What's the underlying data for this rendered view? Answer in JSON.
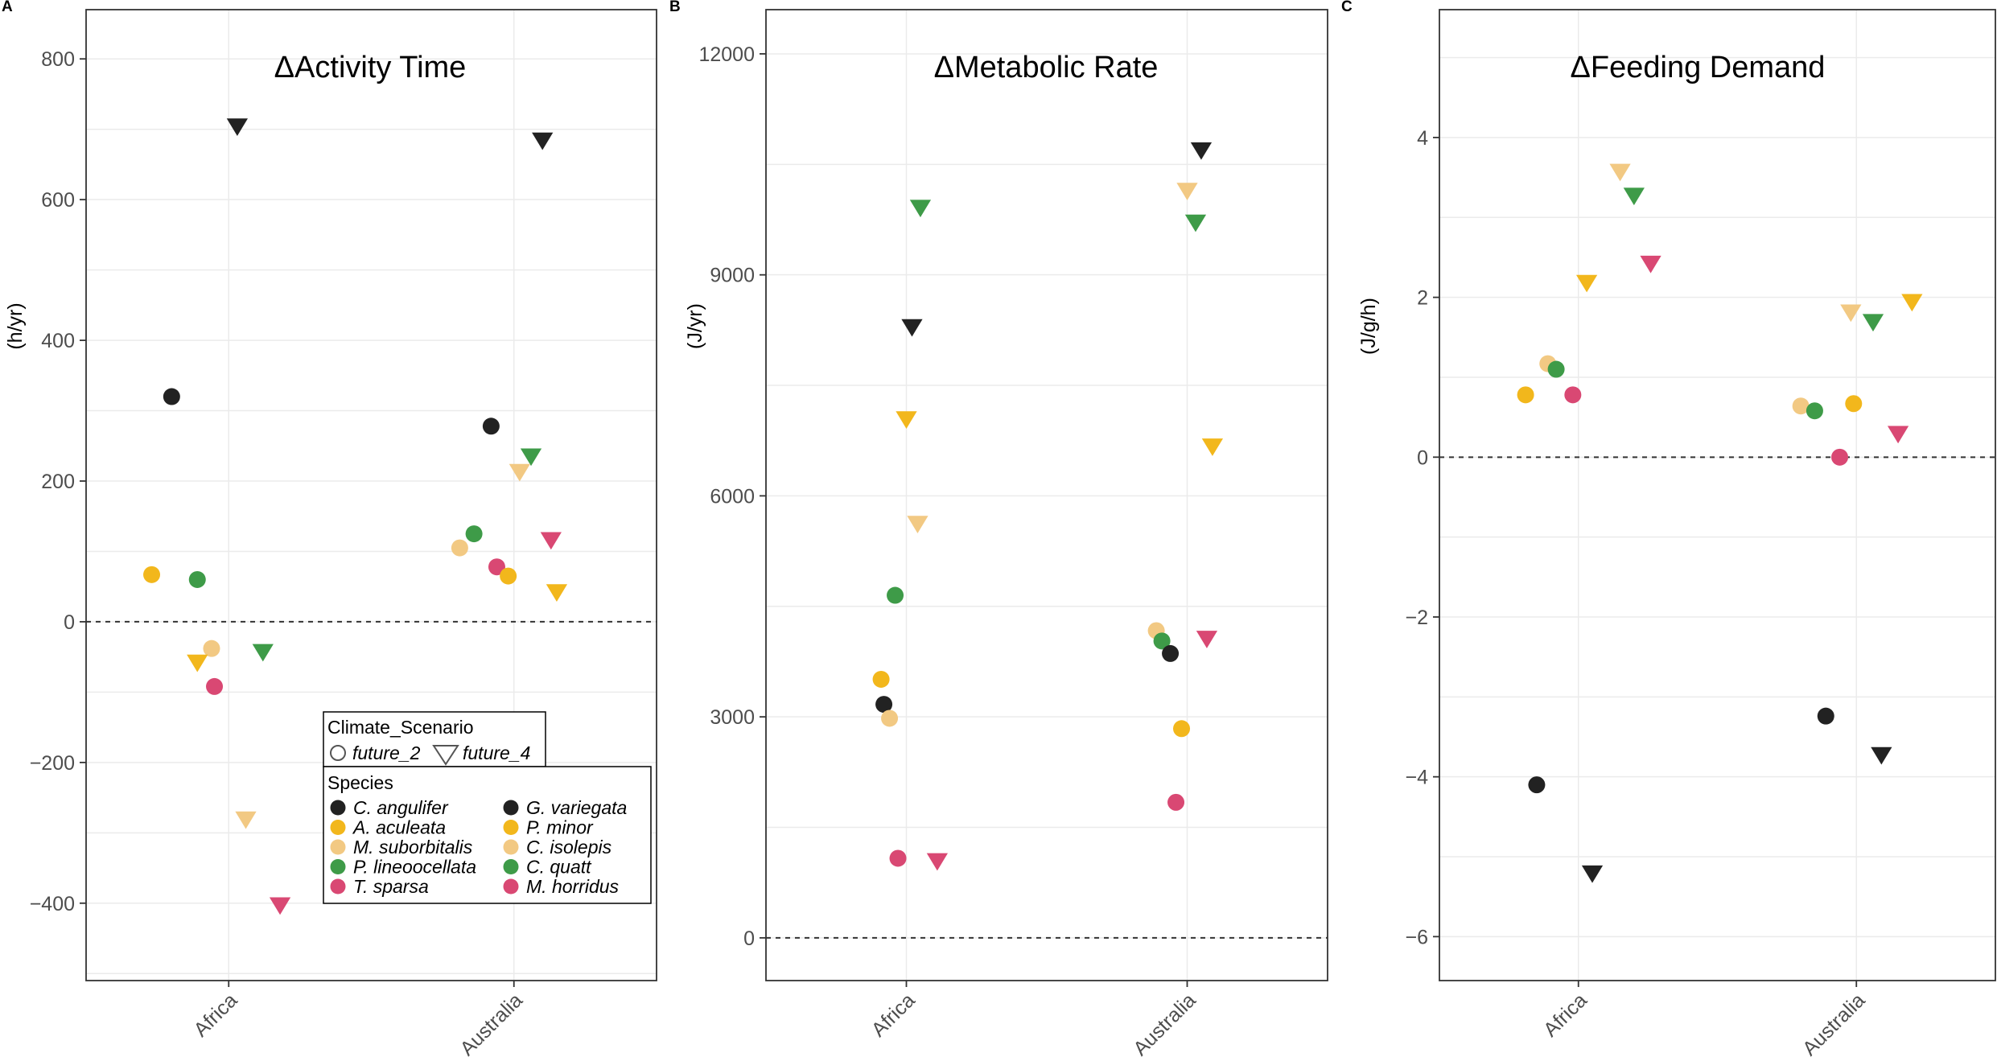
{
  "chart_data": [
    {
      "panel": "A",
      "type": "scatter",
      "title": "ΔActivity Time",
      "ylabel": "(h/yr)",
      "categories": [
        "Africa",
        "Australia"
      ],
      "ylim": [
        -510,
        870
      ],
      "yticks": [
        -400,
        -200,
        0,
        200,
        400,
        600,
        800
      ],
      "zero_line": true,
      "points": [
        {
          "x": "Africa",
          "offset": -0.2,
          "y": 320,
          "shape": "circle",
          "color": "#222222"
        },
        {
          "x": "Africa",
          "offset": 0.03,
          "y": 705,
          "shape": "triangle",
          "color": "#222222"
        },
        {
          "x": "Africa",
          "offset": -0.27,
          "y": 67,
          "shape": "circle",
          "color": "#F2B71C"
        },
        {
          "x": "Africa",
          "offset": -0.11,
          "y": 60,
          "shape": "circle",
          "color": "#3E9B48"
        },
        {
          "x": "Africa",
          "offset": -0.06,
          "y": -38,
          "shape": "circle",
          "color": "#F2C983"
        },
        {
          "x": "Africa",
          "offset": -0.11,
          "y": -57,
          "shape": "triangle",
          "color": "#F2B71C"
        },
        {
          "x": "Africa",
          "offset": 0.12,
          "y": -42,
          "shape": "triangle",
          "color": "#3E9B48"
        },
        {
          "x": "Africa",
          "offset": -0.05,
          "y": -92,
          "shape": "circle",
          "color": "#D94873"
        },
        {
          "x": "Africa",
          "offset": 0.06,
          "y": -280,
          "shape": "triangle",
          "color": "#F2C983"
        },
        {
          "x": "Africa",
          "offset": 0.18,
          "y": -402,
          "shape": "triangle",
          "color": "#D94873"
        },
        {
          "x": "Australia",
          "offset": -0.08,
          "y": 278,
          "shape": "circle",
          "color": "#222222"
        },
        {
          "x": "Australia",
          "offset": 0.1,
          "y": 685,
          "shape": "triangle",
          "color": "#222222"
        },
        {
          "x": "Australia",
          "offset": 0.06,
          "y": 236,
          "shape": "triangle",
          "color": "#3E9B48"
        },
        {
          "x": "Australia",
          "offset": 0.02,
          "y": 214,
          "shape": "triangle",
          "color": "#F2C983"
        },
        {
          "x": "Australia",
          "offset": -0.14,
          "y": 125,
          "shape": "circle",
          "color": "#3E9B48"
        },
        {
          "x": "Australia",
          "offset": 0.13,
          "y": 117,
          "shape": "triangle",
          "color": "#D94873"
        },
        {
          "x": "Australia",
          "offset": -0.19,
          "y": 105,
          "shape": "circle",
          "color": "#F2C983"
        },
        {
          "x": "Australia",
          "offset": -0.06,
          "y": 78,
          "shape": "circle",
          "color": "#D94873"
        },
        {
          "x": "Australia",
          "offset": -0.02,
          "y": 65,
          "shape": "circle",
          "color": "#F2B71C"
        },
        {
          "x": "Australia",
          "offset": 0.15,
          "y": 43,
          "shape": "triangle",
          "color": "#F2B71C"
        }
      ]
    },
    {
      "panel": "B",
      "type": "scatter",
      "title": "ΔMetabolic Rate",
      "ylabel": "(J/yr)",
      "categories": [
        "Africa",
        "Australia"
      ],
      "ylim": [
        -580,
        12600
      ],
      "yticks": [
        0,
        3000,
        6000,
        9000,
        12000
      ],
      "zero_line": true,
      "points": [
        {
          "x": "Africa",
          "offset": 0.05,
          "y": 9920,
          "shape": "triangle",
          "color": "#3E9B48"
        },
        {
          "x": "Africa",
          "offset": 0.02,
          "y": 8300,
          "shape": "triangle",
          "color": "#222222"
        },
        {
          "x": "Africa",
          "offset": 0.0,
          "y": 7050,
          "shape": "triangle",
          "color": "#F2B71C"
        },
        {
          "x": "Africa",
          "offset": 0.04,
          "y": 5630,
          "shape": "triangle",
          "color": "#F2C983"
        },
        {
          "x": "Africa",
          "offset": -0.04,
          "y": 4650,
          "shape": "circle",
          "color": "#3E9B48"
        },
        {
          "x": "Africa",
          "offset": -0.09,
          "y": 3510,
          "shape": "circle",
          "color": "#F2B71C"
        },
        {
          "x": "Africa",
          "offset": -0.08,
          "y": 3170,
          "shape": "circle",
          "color": "#222222"
        },
        {
          "x": "Africa",
          "offset": -0.06,
          "y": 2980,
          "shape": "circle",
          "color": "#F2C983"
        },
        {
          "x": "Africa",
          "offset": -0.03,
          "y": 1080,
          "shape": "circle",
          "color": "#D94873"
        },
        {
          "x": "Africa",
          "offset": 0.11,
          "y": 1050,
          "shape": "triangle",
          "color": "#D94873"
        },
        {
          "x": "Australia",
          "offset": 0.05,
          "y": 10700,
          "shape": "triangle",
          "color": "#222222"
        },
        {
          "x": "Australia",
          "offset": 0.0,
          "y": 10150,
          "shape": "triangle",
          "color": "#F2C983"
        },
        {
          "x": "Australia",
          "offset": 0.03,
          "y": 9720,
          "shape": "triangle",
          "color": "#3E9B48"
        },
        {
          "x": "Australia",
          "offset": 0.09,
          "y": 6680,
          "shape": "triangle",
          "color": "#F2B71C"
        },
        {
          "x": "Australia",
          "offset": -0.11,
          "y": 4170,
          "shape": "circle",
          "color": "#F2C983"
        },
        {
          "x": "Australia",
          "offset": 0.07,
          "y": 4070,
          "shape": "triangle",
          "color": "#D94873"
        },
        {
          "x": "Australia",
          "offset": -0.09,
          "y": 4030,
          "shape": "circle",
          "color": "#3E9B48"
        },
        {
          "x": "Australia",
          "offset": -0.06,
          "y": 3860,
          "shape": "circle",
          "color": "#222222"
        },
        {
          "x": "Australia",
          "offset": -0.02,
          "y": 2840,
          "shape": "circle",
          "color": "#F2B71C"
        },
        {
          "x": "Australia",
          "offset": -0.04,
          "y": 1840,
          "shape": "circle",
          "color": "#D94873"
        }
      ]
    },
    {
      "panel": "C",
      "type": "scatter",
      "title": "ΔFeeding Demand",
      "ylabel": "(J/g/h)",
      "categories": [
        "Africa",
        "Australia"
      ],
      "ylim": [
        -6.55,
        5.6
      ],
      "yticks": [
        -6,
        -4,
        -2,
        0,
        2,
        4
      ],
      "zero_line": true,
      "points": [
        {
          "x": "Africa",
          "offset": 0.15,
          "y": 3.58,
          "shape": "triangle",
          "color": "#F2C983"
        },
        {
          "x": "Africa",
          "offset": 0.2,
          "y": 3.28,
          "shape": "triangle",
          "color": "#3E9B48"
        },
        {
          "x": "Africa",
          "offset": 0.26,
          "y": 2.43,
          "shape": "triangle",
          "color": "#D94873"
        },
        {
          "x": "Africa",
          "offset": 0.03,
          "y": 2.19,
          "shape": "triangle",
          "color": "#F2B71C"
        },
        {
          "x": "Africa",
          "offset": -0.11,
          "y": 1.17,
          "shape": "circle",
          "color": "#F2C983"
        },
        {
          "x": "Africa",
          "offset": -0.08,
          "y": 1.1,
          "shape": "circle",
          "color": "#3E9B48"
        },
        {
          "x": "Africa",
          "offset": -0.19,
          "y": 0.78,
          "shape": "circle",
          "color": "#F2B71C"
        },
        {
          "x": "Africa",
          "offset": -0.02,
          "y": 0.78,
          "shape": "circle",
          "color": "#D94873"
        },
        {
          "x": "Africa",
          "offset": -0.15,
          "y": -4.1,
          "shape": "circle",
          "color": "#222222"
        },
        {
          "x": "Africa",
          "offset": 0.05,
          "y": -5.2,
          "shape": "triangle",
          "color": "#222222"
        },
        {
          "x": "Australia",
          "offset": -0.02,
          "y": 1.82,
          "shape": "triangle",
          "color": "#F2C983"
        },
        {
          "x": "Australia",
          "offset": 0.2,
          "y": 1.95,
          "shape": "triangle",
          "color": "#F2B71C"
        },
        {
          "x": "Australia",
          "offset": 0.06,
          "y": 1.7,
          "shape": "triangle",
          "color": "#3E9B48"
        },
        {
          "x": "Australia",
          "offset": -0.2,
          "y": 0.64,
          "shape": "circle",
          "color": "#F2C983"
        },
        {
          "x": "Australia",
          "offset": -0.15,
          "y": 0.58,
          "shape": "circle",
          "color": "#3E9B48"
        },
        {
          "x": "Australia",
          "offset": -0.01,
          "y": 0.67,
          "shape": "circle",
          "color": "#F2B71C"
        },
        {
          "x": "Australia",
          "offset": 0.15,
          "y": 0.3,
          "shape": "triangle",
          "color": "#D94873"
        },
        {
          "x": "Australia",
          "offset": -0.06,
          "y": 0.0,
          "shape": "circle",
          "color": "#D94873"
        },
        {
          "x": "Australia",
          "offset": -0.11,
          "y": -3.24,
          "shape": "circle",
          "color": "#222222"
        },
        {
          "x": "Australia",
          "offset": 0.09,
          "y": -3.72,
          "shape": "triangle",
          "color": "#222222"
        }
      ]
    }
  ],
  "legend": {
    "scenario_title": "Climate_Scenario",
    "scenarios": [
      {
        "label": "future_2",
        "shape": "circle"
      },
      {
        "label": "future_4",
        "shape": "triangle"
      }
    ],
    "species_title": "Species",
    "species": [
      {
        "label": "C. angulifer",
        "color": "#222222"
      },
      {
        "label": "A. aculeata",
        "color": "#F2B71C"
      },
      {
        "label": "M. suborbitalis",
        "color": "#F2C983"
      },
      {
        "label": "P. lineoocellata",
        "color": "#3E9B48"
      },
      {
        "label": "T. sparsa",
        "color": "#D94873"
      },
      {
        "label": "G. variegata",
        "color": "#222222"
      },
      {
        "label": "P. minor",
        "color": "#F2B71C"
      },
      {
        "label": "C. isolepis",
        "color": "#F2C983"
      },
      {
        "label": "C. quatt",
        "color": "#3E9B48"
      },
      {
        "label": "M. horridus",
        "color": "#D94873"
      }
    ]
  }
}
